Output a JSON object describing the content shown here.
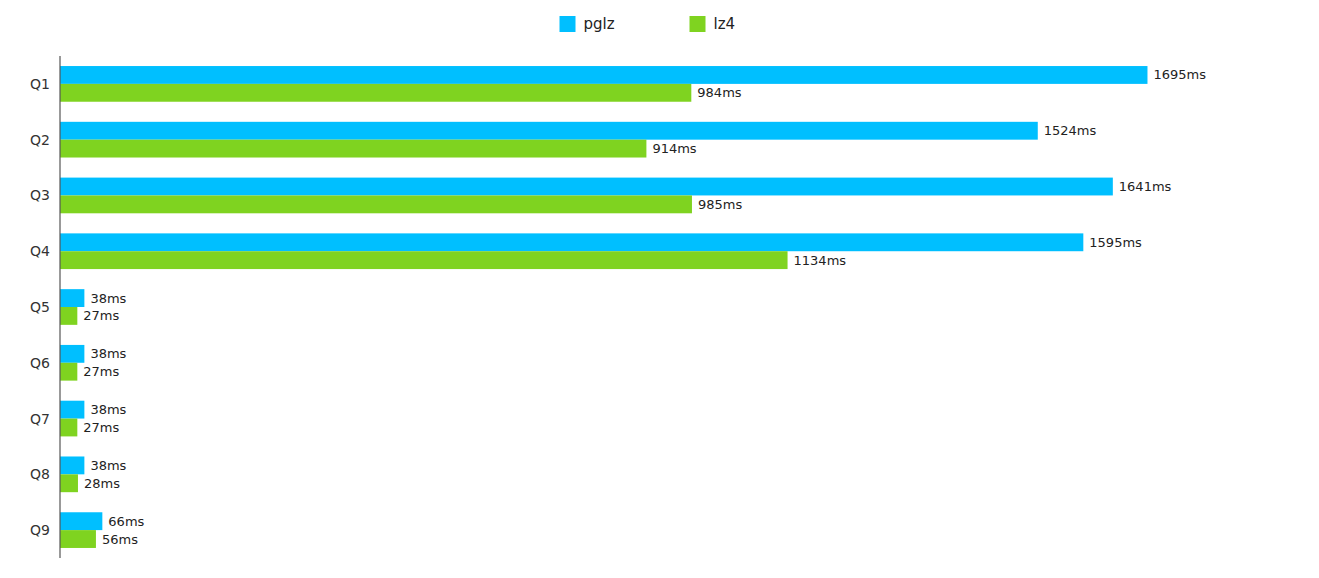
{
  "chart_data": {
    "type": "bar",
    "orientation": "horizontal",
    "categories": [
      "Q1",
      "Q2",
      "Q3",
      "Q4",
      "Q5",
      "Q6",
      "Q7",
      "Q8",
      "Q9"
    ],
    "series": [
      {
        "name": "pglz",
        "color": "#00BFFF",
        "values": [
          1695,
          1524,
          1641,
          1595,
          38,
          38,
          38,
          38,
          66
        ],
        "value_labels": [
          "1695ms",
          "1524ms",
          "1641ms",
          "1595ms",
          "38ms",
          "38ms",
          "38ms",
          "38ms",
          "66ms"
        ]
      },
      {
        "name": "lz4",
        "color": "#7FD320",
        "values": [
          984,
          914,
          985,
          1134,
          27,
          27,
          27,
          28,
          56
        ],
        "value_labels": [
          "984ms",
          "914ms",
          "985ms",
          "1134ms",
          "27ms",
          "27ms",
          "27ms",
          "28ms",
          "56ms"
        ]
      }
    ],
    "xlim": [
      0,
      1900
    ],
    "data_labels": true,
    "tick_labels": "y",
    "grid": false,
    "legend": "top"
  }
}
